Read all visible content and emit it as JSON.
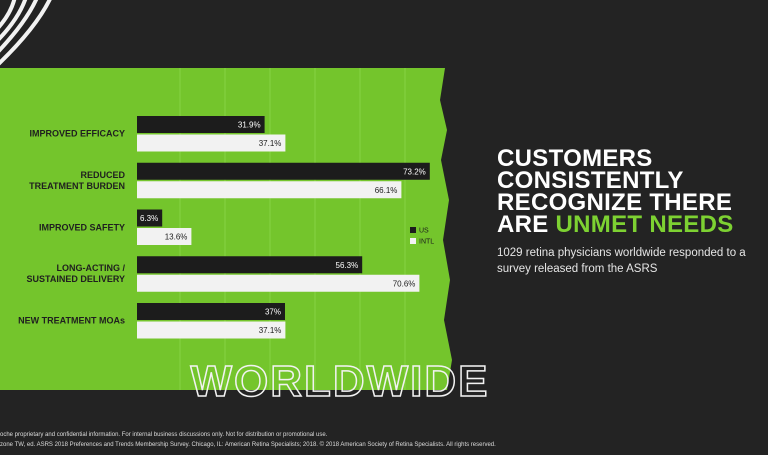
{
  "chart_data": {
    "type": "hbar",
    "categories": [
      "IMPROVED EFFICACY",
      "REDUCED\nTREATMENT BURDEN",
      "IMPROVED SAFETY",
      "LONG-ACTING /\nSUSTAINED DELIVERY",
      "NEW TREATMENT MOAs"
    ],
    "series": [
      {
        "name": "US",
        "color": "#1c1c1c",
        "values": [
          31.9,
          73.2,
          6.3,
          56.3,
          37
        ],
        "value_labels": [
          "31.9%",
          "73.2%",
          "6.3%",
          "56.3%",
          "37%"
        ]
      },
      {
        "name": "INTL",
        "color": "#f2f2f2",
        "values": [
          37.1,
          66.1,
          13.6,
          70.6,
          37.1
        ],
        "value_labels": [
          "37.1%",
          "66.1%",
          "13.6%",
          "70.6%",
          "37.1%"
        ]
      }
    ],
    "xlim": [
      0,
      80
    ]
  },
  "headline": "CUSTOMERS CONSISTENTLY RECOGNIZE THERE ARE",
  "headline_highlight": "UNMET NEEDS",
  "subtitle": "1029 retina physicians worldwide responded to a survey released from the ASRS",
  "watermark": "WORLDWIDE",
  "footer": [
    "oche proprietary and confidential information. For internal business discussions only. Not for distribution or promotional use.",
    "zone TW, ed. ASRS 2018 Preferences and Trends Membership Survey. Chicago, IL: American Retina Specialists; 2018. © 2018 American Society of Retina Specialists. All rights reserved."
  ]
}
